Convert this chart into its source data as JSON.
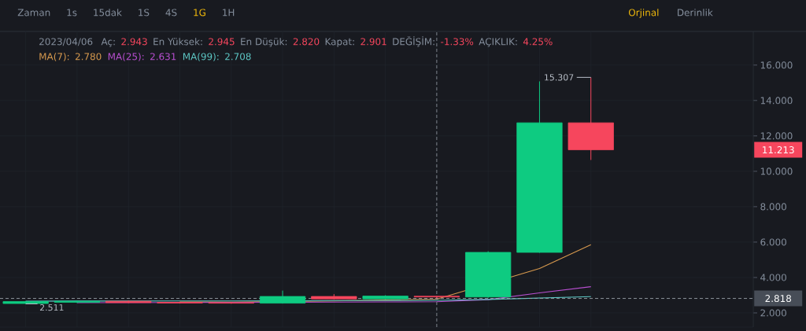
{
  "chart_data": {
    "type": "candlestick",
    "categories": [
      null,
      null,
      null,
      null,
      null,
      null,
      null,
      null,
      null,
      null,
      null,
      null
    ],
    "ohlc": [
      [
        2.53,
        2.66,
        2.511,
        2.64
      ],
      [
        2.6,
        2.7,
        2.56,
        2.66
      ],
      [
        2.66,
        2.7,
        2.55,
        2.58
      ],
      [
        2.6,
        2.63,
        2.53,
        2.56
      ],
      [
        2.58,
        2.62,
        2.52,
        2.55
      ],
      [
        2.55,
        3.26,
        2.53,
        2.93
      ],
      [
        2.93,
        3.06,
        2.76,
        2.79
      ],
      [
        2.79,
        3.0,
        2.76,
        2.95
      ],
      [
        2.943,
        2.945,
        2.82,
        2.901
      ],
      [
        2.9,
        5.48,
        2.85,
        5.42
      ],
      [
        5.42,
        15.08,
        5.4,
        12.74
      ],
      [
        12.74,
        15.307,
        10.64,
        11.213
      ]
    ],
    "colors": [
      "#0ECB81",
      "#0ECB81",
      "#F6465D",
      "#F6465D",
      "#F6465D",
      "#0ECB81",
      "#F6465D",
      "#0ECB81",
      "#F6465D",
      "#0ECB81",
      "#0ECB81",
      "#F6465D"
    ],
    "series": [
      {
        "name": "MA(7):",
        "type": "line",
        "color": "#D89A4E",
        "values": [
          null,
          null,
          null,
          2.62,
          2.61,
          null,
          2.68,
          2.73,
          2.78,
          null,
          4.51,
          5.85
        ]
      },
      {
        "name": "MA(25):",
        "type": "line",
        "color": "#B84FD0",
        "values": [
          null,
          2.58,
          null,
          null,
          2.59,
          null,
          2.61,
          2.62,
          2.631,
          2.75,
          3.13,
          3.48
        ]
      },
      {
        "name": "MA(99):",
        "type": "line",
        "color": "#5DC7C4",
        "values": [
          2.66,
          2.67,
          2.67,
          2.68,
          2.68,
          null,
          2.7,
          2.7,
          2.708,
          2.76,
          2.84,
          2.92
        ]
      }
    ],
    "ylim": [
      1.2,
      17.9
    ],
    "yticks": [
      {
        "value": 2,
        "label": "2.000"
      },
      {
        "value": 4,
        "label": "4.000"
      },
      {
        "value": 6,
        "label": "6.000"
      },
      {
        "value": 8,
        "label": "8.000"
      },
      {
        "value": 10,
        "label": "10.000"
      },
      {
        "value": 12,
        "label": "12.000"
      },
      {
        "value": 14,
        "label": "14.000"
      },
      {
        "value": 16,
        "label": "16.000"
      }
    ],
    "grid": true,
    "legend": "top left",
    "tick_labels": "y",
    "ref_lines": [
      {
        "axis": "y",
        "value": 2.818,
        "color": "#9AA0A8",
        "line_style": "dashed"
      }
    ],
    "annotations": [
      "Zaman",
      "1s",
      "15dak",
      "1S",
      "4S",
      "1G",
      "1H",
      "Orjinal",
      "Derinlik",
      "2023/04/06",
      "Aç:",
      "2.943",
      "En Yüksek:",
      "2.945",
      "En Düşük:",
      "2.820",
      "Kapat:",
      "2.901",
      "DEĞİŞİM:",
      "-1.33%",
      "AÇIKLIK:",
      "4.25%",
      "2.780",
      "2.631",
      "2.708",
      "15.307",
      "11.213",
      "2.818",
      {
        "text": "2.511",
        "y": 2.511
      }
    ]
  }
}
